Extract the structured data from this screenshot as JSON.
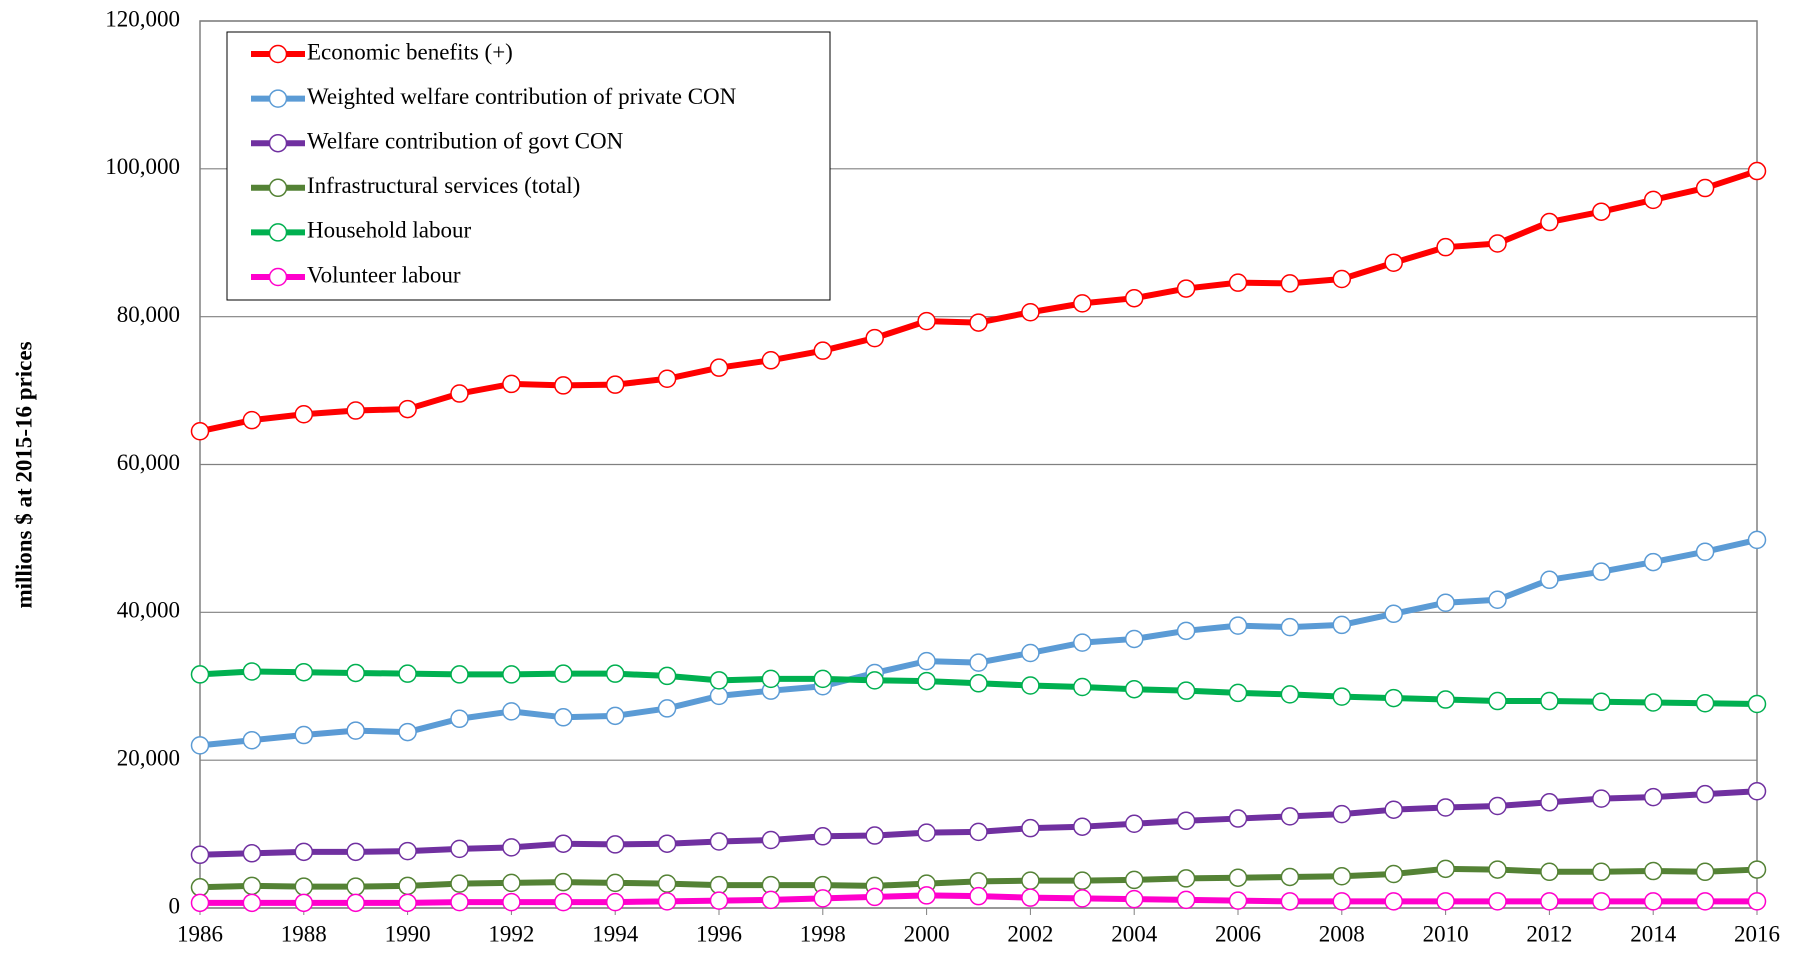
{
  "chart_data": {
    "type": "line",
    "y_label": "millions $ at 2015-16  prices",
    "x": [
      1986,
      1987,
      1988,
      1989,
      1990,
      1991,
      1992,
      1993,
      1994,
      1995,
      1996,
      1997,
      1998,
      1999,
      2000,
      2001,
      2002,
      2003,
      2004,
      2005,
      2006,
      2007,
      2008,
      2009,
      2010,
      2011,
      2012,
      2013,
      2014,
      2015,
      2016
    ],
    "xlim": [
      1986,
      2016
    ],
    "xticks": [
      1986,
      1988,
      1990,
      1992,
      1994,
      1996,
      1998,
      2000,
      2002,
      2004,
      2006,
      2008,
      2010,
      2012,
      2014,
      2016
    ],
    "ylim": [
      0,
      120000
    ],
    "yticks": [
      0,
      {
        "value": 20000,
        "label": "20,000"
      },
      {
        "value": 40000,
        "label": "40,000"
      },
      {
        "value": 60000,
        "label": "60,000"
      },
      {
        "value": 80000,
        "label": "80,000"
      },
      {
        "value": 100000,
        "label": "100,000"
      },
      {
        "value": 120000,
        "label": "120,000"
      }
    ],
    "grid": true,
    "legend": "upper left",
    "series": [
      {
        "name": "Economic benefits (+)",
        "color": "#ff0000",
        "values": [
          64500,
          66000,
          66800,
          67300,
          67500,
          69600,
          70900,
          70700,
          70800,
          71600,
          73100,
          74100,
          75400,
          77100,
          79400,
          79200,
          80600,
          81800,
          82500,
          83800,
          84600,
          84500,
          85100,
          87300,
          89400,
          89900,
          92800,
          94200,
          95800,
          97400,
          99700
        ]
      },
      {
        "name": "Weighted welfare contribution of private CON",
        "color": "#5b9bd5",
        "values": [
          22000,
          22700,
          23400,
          24000,
          23800,
          25600,
          26600,
          25800,
          26000,
          27000,
          28700,
          29400,
          30000,
          31800,
          33400,
          33200,
          34500,
          35900,
          36400,
          37500,
          38200,
          38000,
          38300,
          39800,
          41300,
          41700,
          44400,
          45500,
          46800,
          48200,
          49800
        ]
      },
      {
        "name": "Welfare contribution of govt CON",
        "color": "#7030a0",
        "values": [
          7200,
          7400,
          7600,
          7600,
          7700,
          8000,
          8200,
          8700,
          8600,
          8700,
          9000,
          9200,
          9700,
          9800,
          10200,
          10300,
          10800,
          11000,
          11400,
          11800,
          12100,
          12400,
          12700,
          13300,
          13600,
          13800,
          14300,
          14800,
          15000,
          15400,
          15800
        ]
      },
      {
        "name": "Infrastructural services (total)",
        "color": "#548235",
        "values": [
          2800,
          3000,
          2900,
          2900,
          3000,
          3300,
          3400,
          3500,
          3400,
          3300,
          3100,
          3100,
          3100,
          3000,
          3300,
          3600,
          3700,
          3700,
          3800,
          4000,
          4100,
          4200,
          4300,
          4600,
          5300,
          5200,
          4900,
          4900,
          5000,
          4900,
          5200
        ]
      },
      {
        "name": "Household labour",
        "color": "#00b050",
        "values": [
          31600,
          32000,
          31900,
          31800,
          31700,
          31600,
          31600,
          31700,
          31700,
          31400,
          30800,
          31000,
          31000,
          30800,
          30700,
          30400,
          30100,
          29900,
          29600,
          29400,
          29100,
          28900,
          28600,
          28400,
          28200,
          28000,
          28000,
          27900,
          27800,
          27700,
          27600
        ]
      },
      {
        "name": "Volunteer labour",
        "color": "#ff00cc",
        "values": [
          700,
          700,
          700,
          700,
          700,
          800,
          800,
          800,
          800,
          900,
          1000,
          1100,
          1300,
          1500,
          1700,
          1600,
          1400,
          1300,
          1200,
          1100,
          1000,
          900,
          900,
          900,
          900,
          900,
          900,
          900,
          900,
          900,
          900
        ]
      }
    ]
  }
}
